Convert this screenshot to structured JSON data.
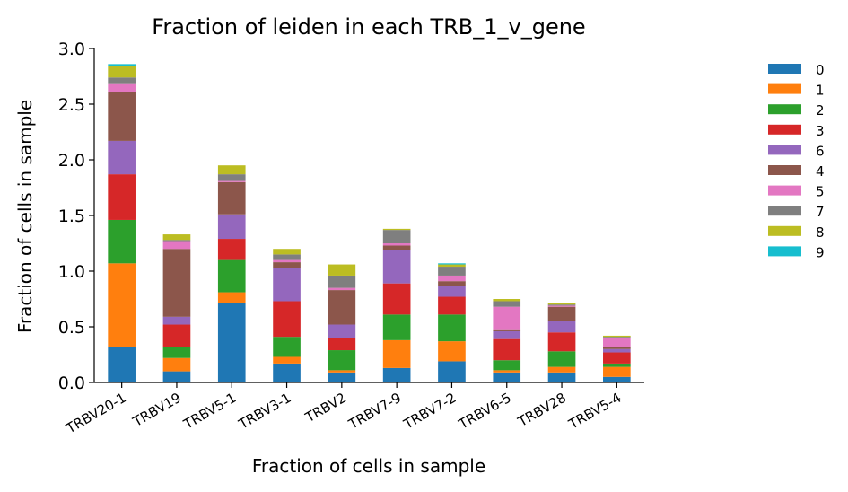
{
  "chart_data": {
    "type": "bar",
    "stacked": true,
    "title": "Fraction of leiden in each TRB_1_v_gene",
    "xlabel": "Fraction of cells in sample",
    "ylabel": "Fraction of cells in sample",
    "ylim": [
      0,
      3.0
    ],
    "yticks": [
      "0.0",
      "0.5",
      "1.0",
      "1.5",
      "2.0",
      "2.5",
      "3.0"
    ],
    "grid": false,
    "legend_position": "right",
    "categories": [
      "TRBV20-1",
      "TRBV19",
      "TRBV5-1",
      "TRBV3-1",
      "TRBV2",
      "TRBV7-9",
      "TRBV7-2",
      "TRBV6-5",
      "TRBV28",
      "TRBV5-4"
    ],
    "series": [
      {
        "name": "0",
        "color": "#1f77b4",
        "values": [
          0.32,
          0.1,
          0.71,
          0.17,
          0.09,
          0.13,
          0.19,
          0.09,
          0.09,
          0.05
        ]
      },
      {
        "name": "1",
        "color": "#ff7f0e",
        "values": [
          0.75,
          0.12,
          0.1,
          0.06,
          0.02,
          0.25,
          0.18,
          0.02,
          0.05,
          0.09
        ]
      },
      {
        "name": "2",
        "color": "#2ca02c",
        "values": [
          0.39,
          0.1,
          0.29,
          0.18,
          0.18,
          0.23,
          0.24,
          0.09,
          0.14,
          0.03
        ]
      },
      {
        "name": "3",
        "color": "#d62728",
        "values": [
          0.41,
          0.2,
          0.19,
          0.32,
          0.11,
          0.28,
          0.16,
          0.19,
          0.17,
          0.1
        ]
      },
      {
        "name": "6",
        "color": "#9467bd",
        "values": [
          0.3,
          0.07,
          0.22,
          0.3,
          0.12,
          0.3,
          0.1,
          0.07,
          0.1,
          0.03
        ]
      },
      {
        "name": "4",
        "color": "#8c564b",
        "values": [
          0.44,
          0.61,
          0.29,
          0.05,
          0.31,
          0.04,
          0.04,
          0.01,
          0.13,
          0.02
        ]
      },
      {
        "name": "5",
        "color": "#e377c2",
        "values": [
          0.07,
          0.07,
          0.01,
          0.02,
          0.02,
          0.02,
          0.05,
          0.21,
          0.01,
          0.08
        ]
      },
      {
        "name": "7",
        "color": "#7f7f7f",
        "values": [
          0.06,
          0.01,
          0.06,
          0.05,
          0.11,
          0.12,
          0.08,
          0.05,
          0.01,
          0.01
        ]
      },
      {
        "name": "8",
        "color": "#bcbd22",
        "values": [
          0.1,
          0.05,
          0.08,
          0.05,
          0.1,
          0.01,
          0.02,
          0.02,
          0.01,
          0.01
        ]
      },
      {
        "name": "9",
        "color": "#17becf",
        "values": [
          0.02,
          0.0,
          0.0,
          0.0,
          0.0,
          0.0,
          0.01,
          0.0,
          0.0,
          0.0
        ]
      }
    ]
  }
}
